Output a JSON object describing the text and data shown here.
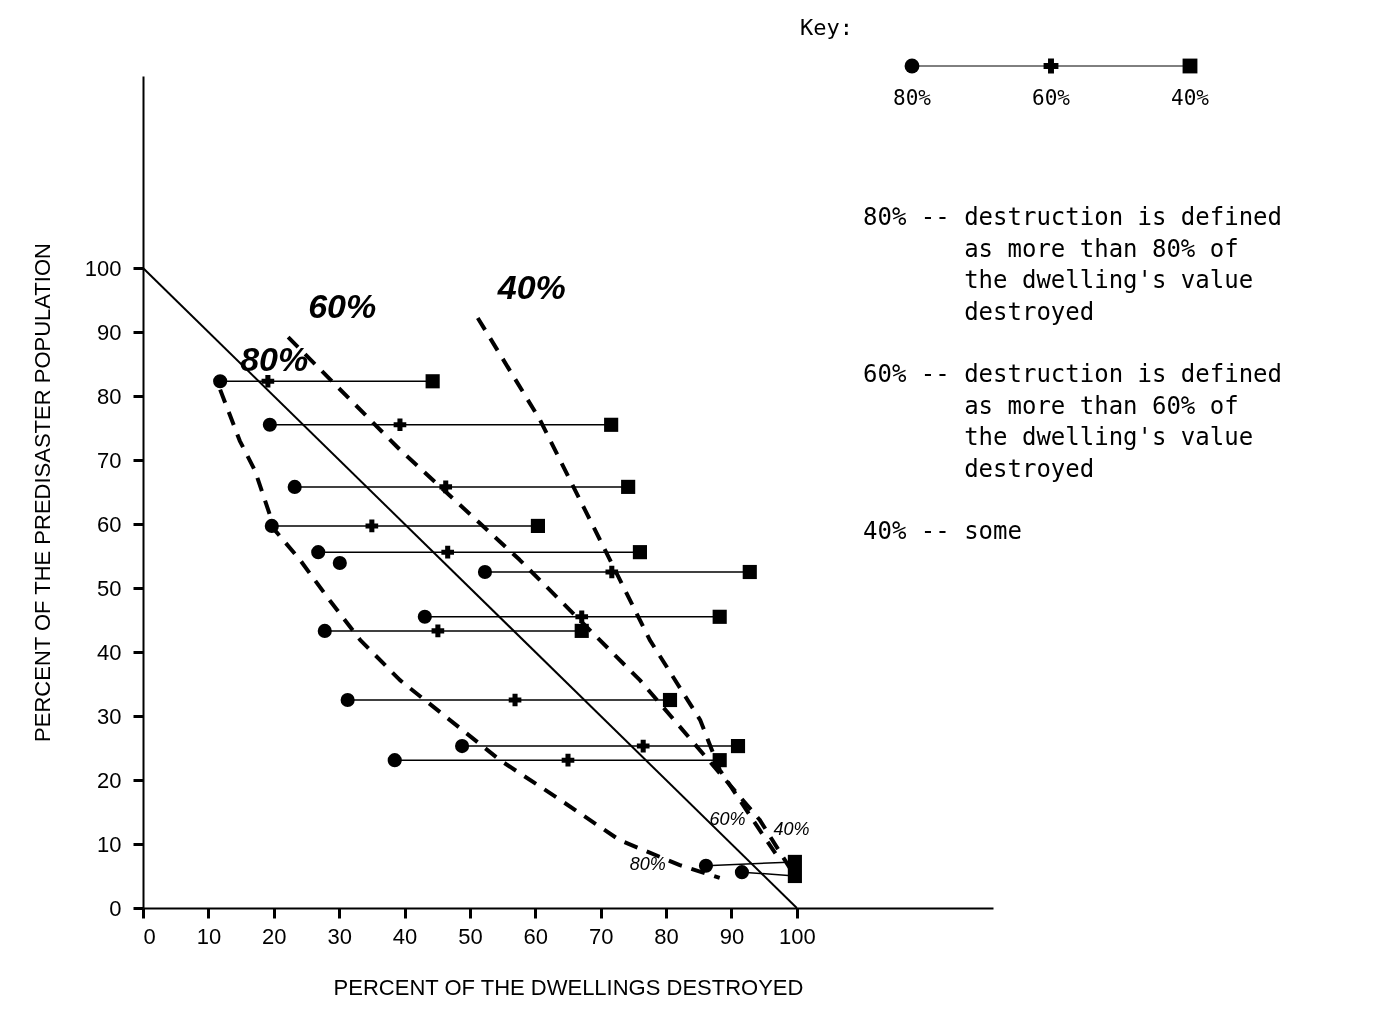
{
  "chart_data": {
    "type": "scatter",
    "xlabel": "PERCENT OF THE DWELLINGS DESTROYED",
    "ylabel": "PERCENT OF THE PREDISASTER POPULATION",
    "legend_title": "Key:",
    "legend": "top right",
    "grid": false,
    "xlim": [
      0,
      130
    ],
    "ylim": [
      0,
      130
    ],
    "xticks": [
      0,
      10,
      20,
      30,
      40,
      50,
      60,
      70,
      80,
      90,
      100
    ],
    "yticks": [
      0,
      10,
      20,
      30,
      40,
      50,
      60,
      70,
      80,
      90,
      100
    ],
    "series": [
      {
        "type": "scatter",
        "name": "80%",
        "color": "#000000",
        "marker": "circle",
        "x": [
          11.8,
          19.4,
          23.2,
          19.7,
          26.8,
          52.3,
          30.1,
          43.1,
          27.8,
          31.3,
          48.8,
          38.5,
          86.1,
          91.6
        ],
        "values": [
          82.3,
          75.5,
          65.8,
          59.7,
          55.6,
          52.5,
          53.9,
          45.5,
          43.3,
          32.5,
          25.3,
          23.1,
          6.6,
          5.6
        ]
      },
      {
        "type": "scatter",
        "name": "60%",
        "color": "#000000",
        "marker": "cross",
        "x": [
          19.1,
          39.3,
          46.3,
          35.0,
          46.6,
          71.7,
          null,
          67.1,
          45.1,
          56.9,
          76.5,
          65.0,
          null,
          null
        ],
        "values": [
          82.3,
          75.5,
          65.8,
          59.7,
          55.6,
          52.5,
          null,
          45.5,
          43.3,
          32.5,
          25.3,
          23.1,
          null,
          null
        ]
      },
      {
        "type": "scatter",
        "name": "40%",
        "color": "#000000",
        "marker": "square",
        "x": [
          44.3,
          71.6,
          74.2,
          60.4,
          76.0,
          92.8,
          null,
          88.2,
          67.1,
          80.6,
          91.0,
          88.2,
          99.7,
          99.7
        ],
        "values": [
          82.3,
          75.5,
          65.8,
          59.7,
          55.6,
          52.5,
          null,
          45.5,
          43.3,
          32.5,
          25.3,
          23.1,
          7.2,
          5.0
        ]
      },
      {
        "type": "line",
        "color": "#000000",
        "line_style": "solid",
        "x": [
          0,
          100
        ],
        "values": [
          100,
          0
        ]
      },
      {
        "type": "line",
        "name": "80%",
        "color": "#000000",
        "line_style": "dashed",
        "x": [
          11.8,
          14.8,
          17.1,
          20.2,
          24,
          28.6,
          33.2,
          39.3,
          46.9,
          54.6,
          63.8,
          72.9,
          82.1,
          88.2
        ],
        "values": [
          81,
          73,
          68.4,
          59,
          54.4,
          48,
          41.9,
          35.6,
          29.4,
          23.1,
          16.9,
          10.6,
          6.7,
          4.7
        ]
      },
      {
        "type": "line",
        "name": "60%",
        "color": "#000000",
        "line_style": "dashed",
        "x": [
          22.2,
          39.3,
          57.6,
          76,
          94.3,
          98.9
        ],
        "values": [
          89.2,
          71.6,
          54.4,
          35.6,
          13.8,
          6.3
        ]
      },
      {
        "type": "line",
        "name": "40%",
        "color": "#000000",
        "line_style": "dashed",
        "x": [
          51.2,
          60.7,
          69.9,
          77.5,
          85.2,
          88.2,
          94.3,
          97.4
        ],
        "values": [
          92.2,
          76.3,
          57.5,
          41.9,
          29.4,
          21.6,
          12.2,
          7.5
        ]
      }
    ],
    "annotations": [
      "80% -- destruction is defined as more than 80% of the dwelling's value destroyed",
      "60% -- destruction is defined as more than 60% of the dwelling's value destroyed",
      "40% -- some"
    ]
  }
}
